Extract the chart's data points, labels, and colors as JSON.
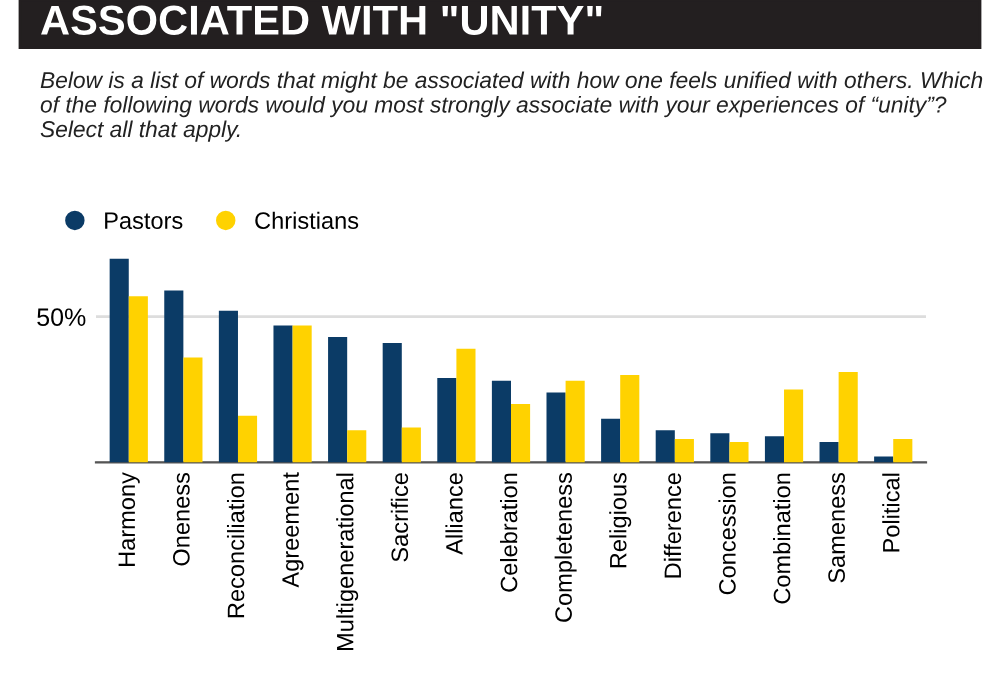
{
  "chart_data": {
    "type": "bar",
    "title": "ASSOCIATED WITH \"UNITY\"",
    "subtitle": "Below is a list of words that might be associated with how one feels unified with others. Which of the following words would you most strongly associate with your experiences of “unity”? Select all that apply.",
    "categories": [
      "Harmony",
      "Oneness",
      "Reconciliation",
      "Agreement",
      "Multigenerational",
      "Sacrifice",
      "Alliance",
      "Celebration",
      "Completeness",
      "Religious",
      "Difference",
      "Concession",
      "Combination",
      "Sameness",
      "Political"
    ],
    "series": [
      {
        "name": "Pastors",
        "color": "#0b3b66",
        "values": [
          70,
          59,
          52,
          47,
          43,
          41,
          29,
          28,
          24,
          15,
          11,
          10,
          9,
          7,
          2
        ]
      },
      {
        "name": "Christians",
        "color": "#ffd200",
        "values": [
          57,
          36,
          16,
          47,
          11,
          12,
          39,
          20,
          28,
          30,
          8,
          7,
          25,
          31,
          8
        ]
      }
    ],
    "ylim": [
      0,
      70
    ],
    "yticks": [
      {
        "value": 0,
        "label": null
      },
      {
        "value": 50,
        "label": "50%"
      }
    ],
    "legend": "top left",
    "grid": "y"
  }
}
